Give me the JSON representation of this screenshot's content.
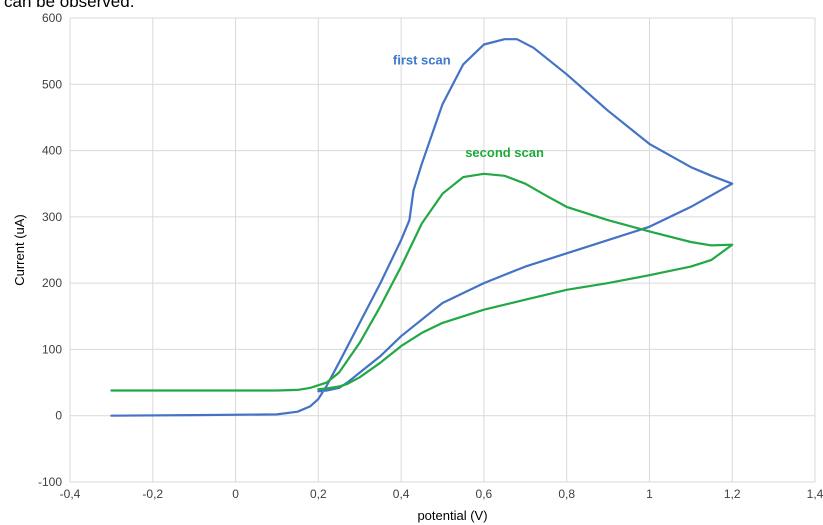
{
  "caption_fragment": "can be observed.",
  "chart_data": {
    "type": "line",
    "title": "",
    "xlabel": "potential (V)",
    "ylabel": "Current (uA)",
    "xlim": [
      -0.4,
      1.4
    ],
    "ylim": [
      -100,
      600
    ],
    "x_ticks": [
      "-0,4",
      "-0,2",
      "0",
      "0,2",
      "0,4",
      "0,6",
      "0,8",
      "1",
      "1,2",
      "1,4"
    ],
    "y_ticks": [
      "600",
      "500",
      "400",
      "300",
      "200",
      "100",
      "0",
      "-100"
    ],
    "grid": true,
    "legend": "none",
    "annotations": [
      {
        "text": "first scan",
        "color": "#3d78cc",
        "x": 0.45,
        "y": 530
      },
      {
        "text": "second scan",
        "color": "#1faa3a",
        "x": 0.65,
        "y": 390
      }
    ],
    "series": [
      {
        "color": "#4472c4",
        "points": [
          [
            -0.3,
            0
          ],
          [
            -0.1,
            1
          ],
          [
            0.1,
            2
          ],
          [
            0.15,
            6
          ],
          [
            0.18,
            14
          ],
          [
            0.2,
            25
          ],
          [
            0.22,
            45
          ],
          [
            0.25,
            80
          ],
          [
            0.3,
            140
          ],
          [
            0.35,
            200
          ],
          [
            0.4,
            265
          ],
          [
            0.42,
            295
          ],
          [
            0.43,
            340
          ],
          [
            0.45,
            380
          ],
          [
            0.5,
            470
          ],
          [
            0.55,
            530
          ],
          [
            0.6,
            560
          ],
          [
            0.65,
            568
          ],
          [
            0.68,
            568
          ],
          [
            0.72,
            555
          ],
          [
            0.8,
            515
          ],
          [
            0.9,
            460
          ],
          [
            1.0,
            410
          ],
          [
            1.1,
            375
          ],
          [
            1.15,
            362
          ],
          [
            1.2,
            350
          ],
          [
            1.1,
            315
          ],
          [
            1.0,
            285
          ],
          [
            0.9,
            265
          ],
          [
            0.8,
            245
          ],
          [
            0.7,
            225
          ],
          [
            0.6,
            200
          ],
          [
            0.5,
            170
          ],
          [
            0.4,
            120
          ],
          [
            0.35,
            90
          ],
          [
            0.3,
            65
          ],
          [
            0.27,
            50
          ],
          [
            0.25,
            42
          ],
          [
            0.22,
            38
          ],
          [
            0.2,
            37
          ]
        ]
      },
      {
        "color": "#22a844",
        "points": [
          [
            -0.3,
            38
          ],
          [
            0,
            38
          ],
          [
            0.1,
            38
          ],
          [
            0.15,
            39
          ],
          [
            0.18,
            42
          ],
          [
            0.22,
            50
          ],
          [
            0.25,
            65
          ],
          [
            0.3,
            110
          ],
          [
            0.35,
            165
          ],
          [
            0.4,
            225
          ],
          [
            0.45,
            290
          ],
          [
            0.5,
            335
          ],
          [
            0.55,
            360
          ],
          [
            0.6,
            365
          ],
          [
            0.65,
            362
          ],
          [
            0.7,
            350
          ],
          [
            0.75,
            332
          ],
          [
            0.8,
            315
          ],
          [
            0.9,
            295
          ],
          [
            1.0,
            278
          ],
          [
            1.1,
            262
          ],
          [
            1.15,
            257
          ],
          [
            1.2,
            258
          ],
          [
            1.15,
            235
          ],
          [
            1.1,
            225
          ],
          [
            1.0,
            212
          ],
          [
            0.9,
            200
          ],
          [
            0.8,
            190
          ],
          [
            0.7,
            175
          ],
          [
            0.6,
            160
          ],
          [
            0.5,
            140
          ],
          [
            0.45,
            125
          ],
          [
            0.4,
            105
          ],
          [
            0.35,
            80
          ],
          [
            0.3,
            58
          ],
          [
            0.27,
            48
          ],
          [
            0.25,
            44
          ],
          [
            0.22,
            41
          ],
          [
            0.2,
            40
          ]
        ]
      }
    ]
  }
}
